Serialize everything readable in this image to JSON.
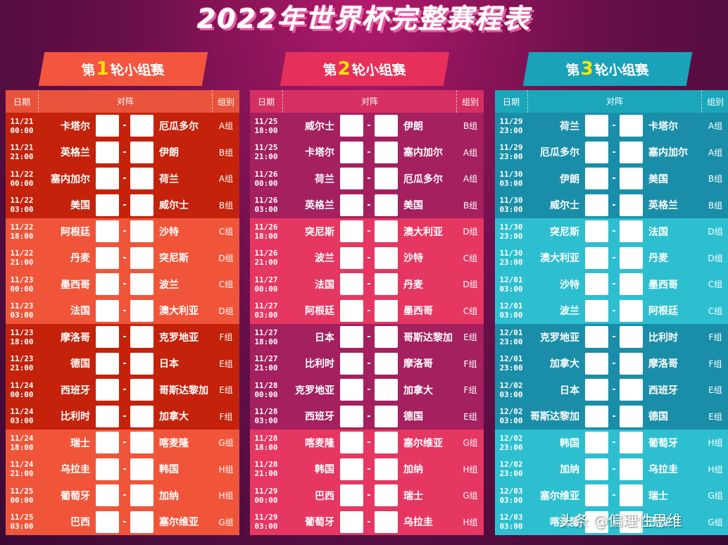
{
  "title": "2022年世界杯完整赛程表",
  "rounds": [
    {
      "prefix": "第",
      "num": "1",
      "suffix": "轮小组赛"
    },
    {
      "prefix": "第",
      "num": "2",
      "suffix": "轮小组赛"
    },
    {
      "prefix": "第",
      "num": "3",
      "suffix": "轮小组赛"
    }
  ],
  "headers": {
    "date": "日期",
    "vs": "对阵",
    "group": "组别"
  },
  "dash": "-",
  "round1": [
    {
      "date": "11/21",
      "time": "00:00",
      "a": "卡塔尔",
      "b": "厄瓜多尔",
      "g": "A组"
    },
    {
      "date": "11/21",
      "time": "21:00",
      "a": "英格兰",
      "b": "伊朗",
      "g": "B组"
    },
    {
      "date": "11/22",
      "time": "00:00",
      "a": "塞内加尔",
      "b": "荷兰",
      "g": "A组"
    },
    {
      "date": "11/22",
      "time": "03:00",
      "a": "美国",
      "b": "威尔士",
      "g": "B组"
    },
    {
      "date": "11/22",
      "time": "18:00",
      "a": "阿根廷",
      "b": "沙特",
      "g": "C组"
    },
    {
      "date": "11/22",
      "time": "21:00",
      "a": "丹麦",
      "b": "突尼斯",
      "g": "D组"
    },
    {
      "date": "11/23",
      "time": "00:00",
      "a": "墨西哥",
      "b": "波兰",
      "g": "C组"
    },
    {
      "date": "11/23",
      "time": "03:00",
      "a": "法国",
      "b": "澳大利亚",
      "g": "D组"
    },
    {
      "date": "11/23",
      "time": "18:00",
      "a": "摩洛哥",
      "b": "克罗地亚",
      "g": "F组"
    },
    {
      "date": "11/23",
      "time": "21:00",
      "a": "德国",
      "b": "日本",
      "g": "E组"
    },
    {
      "date": "11/24",
      "time": "00:00",
      "a": "西班牙",
      "b": "哥斯达黎加",
      "g": "E组"
    },
    {
      "date": "11/24",
      "time": "03:00",
      "a": "比利时",
      "b": "加拿大",
      "g": "F组"
    },
    {
      "date": "11/24",
      "time": "18:00",
      "a": "瑞士",
      "b": "喀麦隆",
      "g": "G组"
    },
    {
      "date": "11/24",
      "time": "21:00",
      "a": "乌拉圭",
      "b": "韩国",
      "g": "H组"
    },
    {
      "date": "11/25",
      "time": "00:00",
      "a": "葡萄牙",
      "b": "加纳",
      "g": "H组"
    },
    {
      "date": "11/25",
      "time": "03:00",
      "a": "巴西",
      "b": "塞尔维亚",
      "g": "G组"
    }
  ],
  "round2": [
    {
      "date": "11/25",
      "time": "18:00",
      "a": "威尔士",
      "b": "伊朗",
      "g": "B组"
    },
    {
      "date": "11/25",
      "time": "21:00",
      "a": "卡塔尔",
      "b": "塞内加尔",
      "g": "A组"
    },
    {
      "date": "11/26",
      "time": "00:00",
      "a": "荷兰",
      "b": "厄瓜多尔",
      "g": "A组"
    },
    {
      "date": "11/26",
      "time": "03:00",
      "a": "英格兰",
      "b": "美国",
      "g": "B组"
    },
    {
      "date": "11/26",
      "time": "18:00",
      "a": "突尼斯",
      "b": "澳大利亚",
      "g": "D组"
    },
    {
      "date": "11/26",
      "time": "21:00",
      "a": "波兰",
      "b": "沙特",
      "g": "C组"
    },
    {
      "date": "11/27",
      "time": "00:00",
      "a": "法国",
      "b": "丹麦",
      "g": "D组"
    },
    {
      "date": "11/27",
      "time": "03:00",
      "a": "阿根廷",
      "b": "墨西哥",
      "g": "C组"
    },
    {
      "date": "11/27",
      "time": "18:00",
      "a": "日本",
      "b": "哥斯达黎加",
      "g": "E组"
    },
    {
      "date": "11/27",
      "time": "21:00",
      "a": "比利时",
      "b": "摩洛哥",
      "g": "F组"
    },
    {
      "date": "11/28",
      "time": "00:00",
      "a": "克罗地亚",
      "b": "加拿大",
      "g": "F组"
    },
    {
      "date": "11/28",
      "time": "03:00",
      "a": "西班牙",
      "b": "德国",
      "g": "E组"
    },
    {
      "date": "11/28",
      "time": "18:00",
      "a": "喀麦隆",
      "b": "塞尔维亚",
      "g": "G组"
    },
    {
      "date": "11/28",
      "time": "21:00",
      "a": "韩国",
      "b": "加纳",
      "g": "H组"
    },
    {
      "date": "11/29",
      "time": "00:00",
      "a": "巴西",
      "b": "瑞士",
      "g": "G组"
    },
    {
      "date": "11/29",
      "time": "03:00",
      "a": "葡萄牙",
      "b": "乌拉圭",
      "g": "H组"
    }
  ],
  "round3": [
    {
      "date": "11/29",
      "time": "23:00",
      "a": "荷兰",
      "b": "卡塔尔",
      "g": "A组"
    },
    {
      "date": "11/29",
      "time": "23:00",
      "a": "厄瓜多尔",
      "b": "塞内加尔",
      "g": "A组"
    },
    {
      "date": "11/30",
      "time": "03:00",
      "a": "伊朗",
      "b": "美国",
      "g": "B组"
    },
    {
      "date": "11/30",
      "time": "03:00",
      "a": "威尔士",
      "b": "英格兰",
      "g": "B组"
    },
    {
      "date": "11/30",
      "time": "23:00",
      "a": "突尼斯",
      "b": "法国",
      "g": "D组"
    },
    {
      "date": "11/30",
      "time": "23:00",
      "a": "澳大利亚",
      "b": "丹麦",
      "g": "D组"
    },
    {
      "date": "12/01",
      "time": "03:00",
      "a": "沙特",
      "b": "墨西哥",
      "g": "C组"
    },
    {
      "date": "12/01",
      "time": "03:00",
      "a": "波兰",
      "b": "阿根廷",
      "g": "C组"
    },
    {
      "date": "12/01",
      "time": "23:00",
      "a": "克罗地亚",
      "b": "比利时",
      "g": "F组"
    },
    {
      "date": "12/01",
      "time": "23:00",
      "a": "加拿大",
      "b": "摩洛哥",
      "g": "F组"
    },
    {
      "date": "12/02",
      "time": "03:00",
      "a": "日本",
      "b": "西班牙",
      "g": "E组"
    },
    {
      "date": "12/02",
      "time": "03:00",
      "a": "哥斯达黎加",
      "b": "德国",
      "g": "E组"
    },
    {
      "date": "12/02",
      "time": "23:00",
      "a": "韩国",
      "b": "葡萄牙",
      "g": "H组"
    },
    {
      "date": "12/02",
      "time": "23:00",
      "a": "加纳",
      "b": "乌拉圭",
      "g": "H组"
    },
    {
      "date": "12/03",
      "time": "03:00",
      "a": "塞尔维亚",
      "b": "瑞士",
      "g": "G组"
    },
    {
      "date": "12/03",
      "time": "03:00",
      "a": "喀麦隆",
      "b": "巴西",
      "g": "G组"
    }
  ],
  "watermark": "头条 @偏理性思维"
}
